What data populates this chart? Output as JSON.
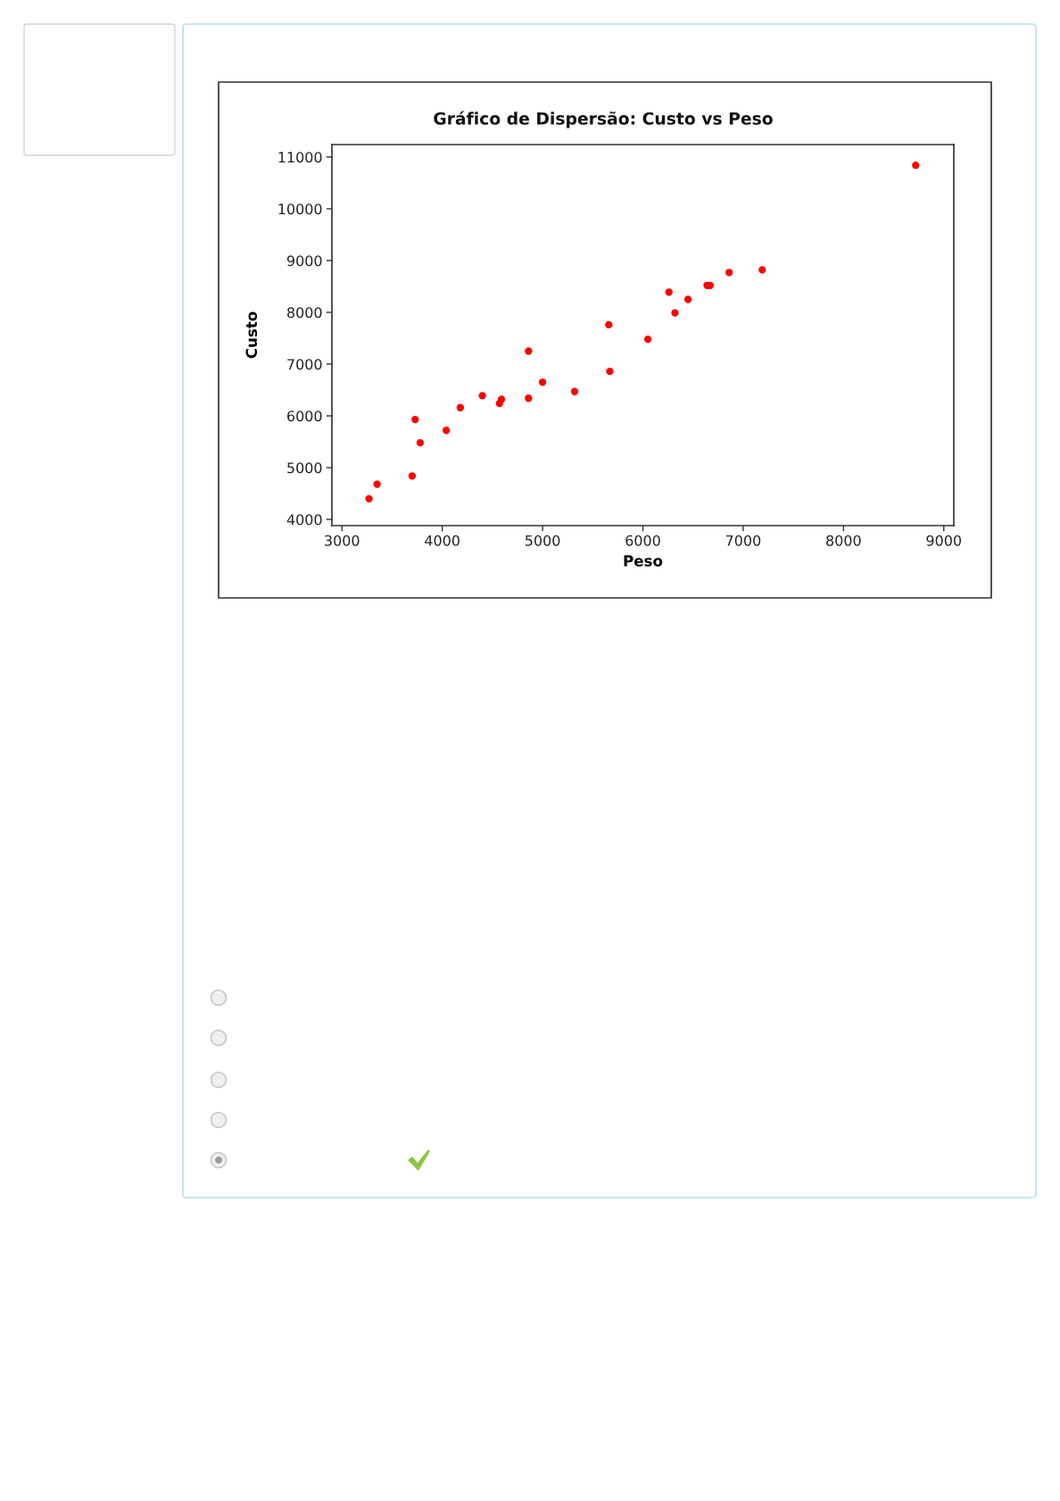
{
  "chart_data": {
    "type": "scatter",
    "title": "Gráfico de Dispersão: Custo vs Peso",
    "xlabel": "Peso",
    "ylabel": "Custo",
    "x": [
      3270,
      3350,
      3700,
      3730,
      3780,
      4040,
      4180,
      4400,
      4570,
      4590,
      4860,
      4860,
      5000,
      5320,
      5660,
      5670,
      6050,
      6260,
      6320,
      6450,
      6640,
      6670,
      6860,
      7190,
      8720
    ],
    "values": [
      4400,
      4680,
      4840,
      5930,
      5480,
      5720,
      6160,
      6390,
      6240,
      6320,
      7250,
      6340,
      6650,
      6470,
      7760,
      6860,
      7480,
      8390,
      7990,
      8250,
      8520,
      8520,
      8770,
      8820,
      10840
    ],
    "color": "#ff0000",
    "marker": "circle",
    "xlim": [
      2900,
      9100
    ],
    "ylim": [
      3880,
      11240
    ],
    "xticks": [
      3000,
      4000,
      5000,
      6000,
      7000,
      8000,
      9000
    ],
    "yticks": [
      4000,
      5000,
      6000,
      7000,
      8000,
      9000,
      10000,
      11000
    ]
  }
}
